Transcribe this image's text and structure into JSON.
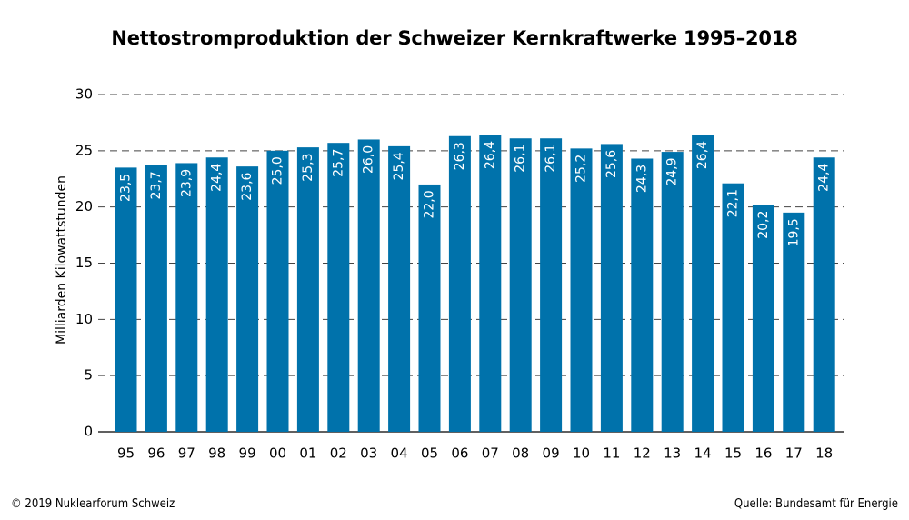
{
  "chart_data": {
    "type": "bar",
    "title": "Nettostromproduktion der Schweizer Kernkraftwerke 1995–2018",
    "xlabel": "",
    "ylabel": "Milliarden Kilowattstunden",
    "ylim": [
      0,
      30
    ],
    "yticks": [
      0,
      5,
      10,
      15,
      20,
      25,
      30
    ],
    "ytick_labels": [
      "0",
      "5",
      "10",
      "15",
      "20",
      "25",
      "30"
    ],
    "grid": "horizontal dashed",
    "bar_color": "#0072ab",
    "categories": [
      "95",
      "96",
      "97",
      "98",
      "99",
      "00",
      "01",
      "02",
      "03",
      "04",
      "05",
      "06",
      "07",
      "08",
      "09",
      "10",
      "11",
      "12",
      "13",
      "14",
      "15",
      "16",
      "17",
      "18"
    ],
    "values": [
      23.5,
      23.7,
      23.9,
      24.4,
      23.6,
      25.0,
      25.3,
      25.7,
      26.0,
      25.4,
      22.0,
      26.3,
      26.4,
      26.1,
      26.1,
      25.2,
      25.6,
      24.3,
      24.9,
      26.4,
      22.1,
      20.2,
      19.5,
      24.4
    ],
    "data_labels": [
      "23,5",
      "23,7",
      "23,9",
      "24,4",
      "23,6",
      "25,0",
      "25,3",
      "25,7",
      "26,0",
      "25,4",
      "22,0",
      "26,3",
      "26,4",
      "26,1",
      "26,1",
      "25,2",
      "25,6",
      "24,3",
      "24,9",
      "26,4",
      "22,1",
      "20,2",
      "19,5",
      "24,4"
    ]
  },
  "footer": {
    "copyright": "© 2019 Nuklearforum Schweiz",
    "source": "Quelle: Bundesamt für Energie"
  }
}
